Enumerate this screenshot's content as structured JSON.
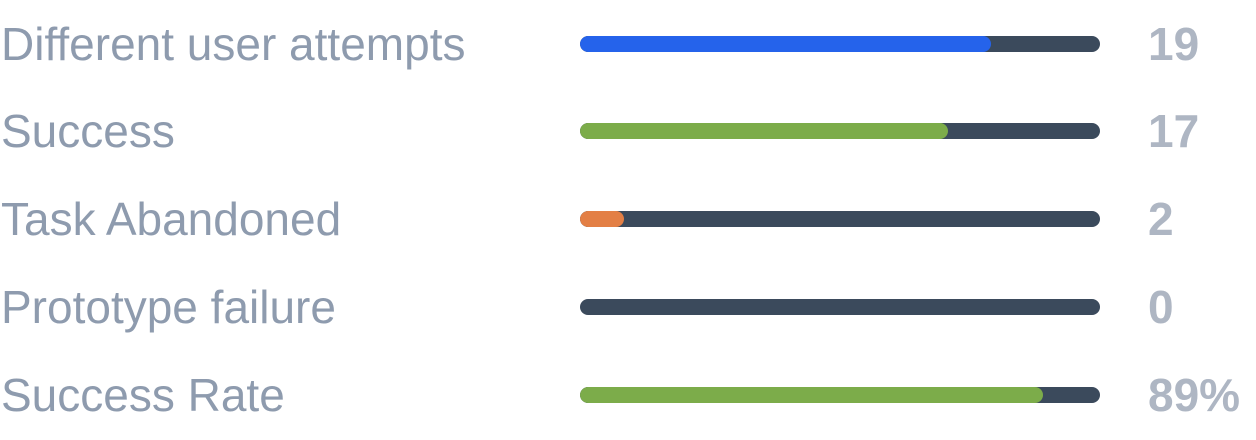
{
  "stats": [
    {
      "label": "Different user attempts",
      "value": "19",
      "fraction": 0.79,
      "color": "#2563eb"
    },
    {
      "label": "Success",
      "value": "17",
      "fraction": 0.707,
      "color": "#7cac4a"
    },
    {
      "label": "Task Abandoned",
      "value": "2",
      "fraction": 0.085,
      "color": "#e37f45"
    },
    {
      "label": "Prototype failure",
      "value": "0",
      "fraction": 0.0,
      "color": "#3b4a5c"
    },
    {
      "label": "Success Rate",
      "value": "89%",
      "fraction": 0.89,
      "color": "#7cac4a"
    }
  ]
}
